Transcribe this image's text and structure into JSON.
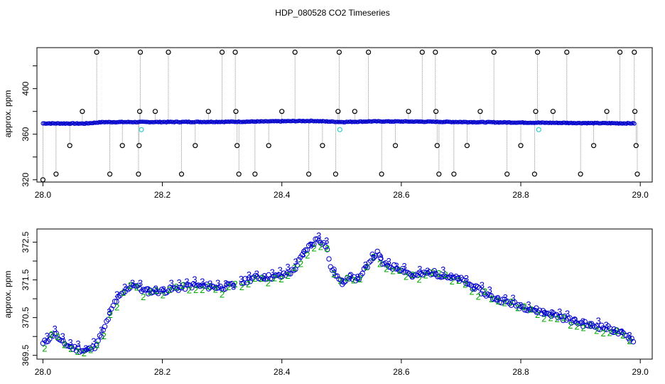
{
  "page": {
    "title": "HDP_080528  CO2 Timeseries"
  },
  "colors": {
    "axis": "#000000",
    "point_black": "#000000",
    "point_blue": "#0000cc",
    "point_cyan": "#33cccc",
    "point_green": "#00aa00",
    "droplines": "#777777"
  },
  "chart_data": [
    {
      "type": "scatter",
      "panel": "top",
      "title": "",
      "xlabel": "",
      "ylabel": "approx. ppm",
      "xlim": [
        27.99,
        29.02
      ],
      "ylim": [
        318,
        436
      ],
      "x_ticks": [
        28.0,
        28.2,
        28.4,
        28.6,
        28.8,
        29.0
      ],
      "x_tick_labels": [
        "28.0",
        "28.2",
        "28.4",
        "28.6",
        "28.8",
        "29.0"
      ],
      "y_ticks": [
        320,
        360,
        400,
        420
      ],
      "y_tick_labels": [
        "320",
        "360",
        "400",
        ""
      ],
      "y_ticks_all": [
        320,
        340,
        360,
        380,
        400,
        420
      ],
      "y_tick_labels_all": [
        "320",
        "",
        "360",
        "",
        "400",
        ""
      ],
      "grid": false,
      "legend": "none",
      "baseline_series": {
        "name": "",
        "x_start": 28.0,
        "x_end": 28.99,
        "y_start": 369.8,
        "y_end": 369.8,
        "anchors": [
          [
            28.0,
            369.8
          ],
          [
            28.07,
            369.6
          ],
          [
            28.1,
            371.2
          ],
          [
            28.2,
            371.3
          ],
          [
            28.33,
            371.6
          ],
          [
            28.45,
            372.5
          ],
          [
            28.5,
            371.3
          ],
          [
            28.55,
            372.0
          ],
          [
            28.62,
            371.8
          ],
          [
            28.72,
            371.2
          ],
          [
            28.8,
            370.7
          ],
          [
            28.9,
            370.2
          ],
          [
            28.99,
            369.8
          ]
        ]
      },
      "outliers_black": [
        [
          28.0,
          320
        ],
        [
          28.022,
          325
        ],
        [
          28.045,
          350
        ],
        [
          28.066,
          380
        ],
        [
          28.09,
          432
        ],
        [
          28.112,
          325
        ],
        [
          28.133,
          350
        ],
        [
          28.16,
          325
        ],
        [
          28.161,
          350
        ],
        [
          28.162,
          380
        ],
        [
          28.163,
          432
        ],
        [
          28.188,
          380
        ],
        [
          28.21,
          432
        ],
        [
          28.232,
          325
        ],
        [
          28.255,
          350
        ],
        [
          28.277,
          380
        ],
        [
          28.3,
          432
        ],
        [
          28.322,
          432
        ],
        [
          28.323,
          380
        ],
        [
          28.325,
          350
        ],
        [
          28.328,
          325
        ],
        [
          28.355,
          325
        ],
        [
          28.378,
          350
        ],
        [
          28.4,
          380
        ],
        [
          28.422,
          432
        ],
        [
          28.445,
          325
        ],
        [
          28.468,
          350
        ],
        [
          28.49,
          325
        ],
        [
          28.494,
          380
        ],
        [
          28.496,
          432
        ],
        [
          28.522,
          380
        ],
        [
          28.545,
          432
        ],
        [
          28.567,
          325
        ],
        [
          28.59,
          350
        ],
        [
          28.612,
          380
        ],
        [
          28.635,
          432
        ],
        [
          28.657,
          432
        ],
        [
          28.658,
          380
        ],
        [
          28.66,
          350
        ],
        [
          28.663,
          325
        ],
        [
          28.688,
          325
        ],
        [
          28.71,
          350
        ],
        [
          28.732,
          380
        ],
        [
          28.755,
          432
        ],
        [
          28.777,
          325
        ],
        [
          28.8,
          350
        ],
        [
          28.823,
          325
        ],
        [
          28.825,
          380
        ],
        [
          28.828,
          432
        ],
        [
          28.854,
          380
        ],
        [
          28.877,
          432
        ],
        [
          28.9,
          325
        ],
        [
          28.922,
          350
        ],
        [
          28.944,
          380
        ],
        [
          28.966,
          432
        ],
        [
          28.99,
          432
        ],
        [
          28.991,
          380
        ],
        [
          28.993,
          350
        ],
        [
          28.995,
          325
        ]
      ],
      "outliers_cyan": [
        [
          28.165,
          364
        ],
        [
          28.497,
          364
        ],
        [
          28.83,
          364
        ]
      ]
    },
    {
      "type": "scatter",
      "panel": "bottom",
      "title": "",
      "xlabel": "",
      "ylabel": "approx. ppm",
      "xlim": [
        27.99,
        29.02
      ],
      "ylim": [
        369.4,
        372.85
      ],
      "x_ticks": [
        28.0,
        28.2,
        28.4,
        28.6,
        28.8,
        29.0
      ],
      "x_tick_labels": [
        "28.0",
        "28.2",
        "28.4",
        "28.6",
        "28.8",
        "29.0"
      ],
      "y_ticks": [
        369.5,
        370.0,
        370.5,
        371.0,
        371.5,
        372.0,
        372.5
      ],
      "y_tick_labels": [
        "369.5",
        "370.5",
        "371.5",
        "372.5"
      ],
      "y_tick_labels_all": [
        "369.5",
        "",
        "370.5",
        "",
        "371.5",
        "",
        "372.5"
      ],
      "grid": false,
      "legend": "none",
      "series": [
        {
          "name": "",
          "marker": "o",
          "color": "blue",
          "anchors": [
            [
              28.0,
              369.8
            ],
            [
              28.02,
              370.1
            ],
            [
              28.03,
              369.85
            ],
            [
              28.05,
              369.7
            ],
            [
              28.07,
              369.62
            ],
            [
              28.085,
              369.7
            ],
            [
              28.1,
              370.1
            ],
            [
              28.12,
              370.9
            ],
            [
              28.15,
              371.4
            ],
            [
              28.17,
              371.2
            ],
            [
              28.2,
              371.2
            ],
            [
              28.25,
              371.35
            ],
            [
              28.3,
              371.3
            ],
            [
              28.33,
              371.4
            ],
            [
              28.35,
              371.55
            ],
            [
              28.4,
              371.6
            ],
            [
              28.42,
              371.75
            ],
            [
              28.44,
              372.3
            ],
            [
              28.46,
              372.6
            ],
            [
              28.475,
              372.4
            ],
            [
              28.48,
              371.9
            ],
            [
              28.5,
              371.4
            ],
            [
              28.51,
              371.6
            ],
            [
              28.53,
              371.5
            ],
            [
              28.55,
              372.1
            ],
            [
              28.56,
              372.2
            ],
            [
              28.57,
              371.9
            ],
            [
              28.6,
              371.8
            ],
            [
              28.62,
              371.6
            ],
            [
              28.65,
              371.7
            ],
            [
              28.7,
              371.5
            ],
            [
              28.75,
              371.05
            ],
            [
              28.8,
              370.8
            ],
            [
              28.85,
              370.6
            ],
            [
              28.9,
              370.35
            ],
            [
              28.95,
              370.2
            ],
            [
              28.99,
              369.9
            ]
          ]
        },
        {
          "name": "",
          "marker": "2",
          "color": "green",
          "offset": [
            -0.08,
            0.1
          ]
        },
        {
          "name": "",
          "marker": "3",
          "color": "blue",
          "offset": [
            0.12,
            0.05
          ]
        }
      ]
    }
  ]
}
